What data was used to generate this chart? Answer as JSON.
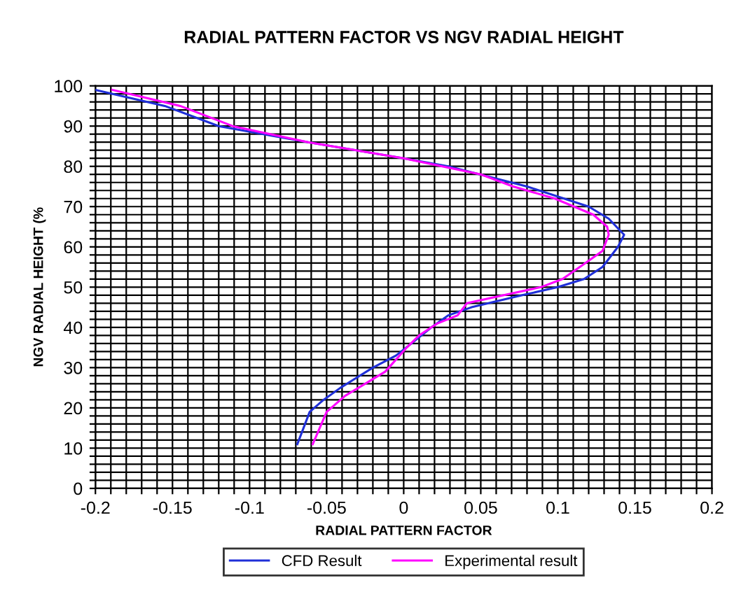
{
  "chart_data": {
    "type": "line",
    "title": "RADIAL PATTERN FACTOR VS NGV RADIAL HEIGHT",
    "xlabel": "RADIAL PATTERN FACTOR",
    "ylabel": "NGV RADIAL HEIGHT (%",
    "xlim": [
      -0.2,
      0.2
    ],
    "ylim": [
      0,
      100
    ],
    "xticks": [
      -0.2,
      {
        "value": -0.19,
        "label": null
      },
      {
        "value": -0.18,
        "label": null
      },
      {
        "value": -0.17,
        "label": null
      },
      {
        "value": -0.16,
        "label": null
      },
      -0.15,
      {
        "value": -0.14,
        "label": null
      },
      {
        "value": -0.13,
        "label": null
      },
      {
        "value": -0.12,
        "label": null
      },
      {
        "value": -0.11,
        "label": null
      },
      -0.1,
      {
        "value": -0.09,
        "label": null
      },
      {
        "value": -0.08,
        "label": null
      },
      {
        "value": -0.07,
        "label": null
      },
      {
        "value": -0.06,
        "label": null
      },
      -0.05,
      {
        "value": -0.04,
        "label": null
      },
      {
        "value": -0.03,
        "label": null
      },
      {
        "value": -0.02,
        "label": null
      },
      {
        "value": -0.01,
        "label": null
      },
      0,
      {
        "value": 0.01,
        "label": null
      },
      {
        "value": 0.02,
        "label": null
      },
      {
        "value": 0.03,
        "label": null
      },
      {
        "value": 0.04,
        "label": null
      },
      0.05,
      {
        "value": 0.06,
        "label": null
      },
      {
        "value": 0.07,
        "label": null
      },
      {
        "value": 0.08,
        "label": null
      },
      {
        "value": 0.09,
        "label": null
      },
      0.1,
      {
        "value": 0.11,
        "label": null
      },
      {
        "value": 0.12,
        "label": null
      },
      {
        "value": 0.13,
        "label": null
      },
      {
        "value": 0.14,
        "label": null
      },
      0.15,
      {
        "value": 0.16,
        "label": null
      },
      {
        "value": 0.17,
        "label": null
      },
      {
        "value": 0.18,
        "label": null
      },
      {
        "value": 0.19,
        "label": null
      },
      0.2
    ],
    "yticks": [
      0,
      {
        "value": 2,
        "label": null
      },
      {
        "value": 4,
        "label": null
      },
      {
        "value": 6,
        "label": null
      },
      {
        "value": 8,
        "label": null
      },
      10,
      {
        "value": 12,
        "label": null
      },
      {
        "value": 14,
        "label": null
      },
      {
        "value": 16,
        "label": null
      },
      {
        "value": 18,
        "label": null
      },
      20,
      {
        "value": 22,
        "label": null
      },
      {
        "value": 24,
        "label": null
      },
      {
        "value": 26,
        "label": null
      },
      {
        "value": 28,
        "label": null
      },
      30,
      {
        "value": 32,
        "label": null
      },
      {
        "value": 34,
        "label": null
      },
      {
        "value": 36,
        "label": null
      },
      {
        "value": 38,
        "label": null
      },
      40,
      {
        "value": 42,
        "label": null
      },
      {
        "value": 44,
        "label": null
      },
      {
        "value": 46,
        "label": null
      },
      {
        "value": 48,
        "label": null
      },
      50,
      {
        "value": 52,
        "label": null
      },
      {
        "value": 54,
        "label": null
      },
      {
        "value": 56,
        "label": null
      },
      {
        "value": 58,
        "label": null
      },
      60,
      {
        "value": 62,
        "label": null
      },
      {
        "value": 64,
        "label": null
      },
      {
        "value": 66,
        "label": null
      },
      {
        "value": 68,
        "label": null
      },
      70,
      {
        "value": 72,
        "label": null
      },
      {
        "value": 74,
        "label": null
      },
      {
        "value": 76,
        "label": null
      },
      {
        "value": 78,
        "label": null
      },
      80,
      {
        "value": 82,
        "label": null
      },
      {
        "value": 84,
        "label": null
      },
      {
        "value": 86,
        "label": null
      },
      {
        "value": 88,
        "label": null
      },
      90,
      {
        "value": 92,
        "label": null
      },
      {
        "value": 94,
        "label": null
      },
      {
        "value": 96,
        "label": null
      },
      {
        "value": 98,
        "label": null
      },
      100
    ],
    "grid": true,
    "legend": "bottom",
    "marker": "none",
    "line_style": "solid",
    "series": [
      {
        "name": "CFD Result",
        "color": "#1f2fd8",
        "x": [
          -0.2,
          -0.155,
          -0.12,
          -0.062,
          0,
          0.029,
          0.08,
          0.12,
          0.133,
          0.143,
          0.139,
          0.129,
          0.117,
          0.1,
          0.077,
          0.044,
          0.029,
          0.018,
          0.005,
          -0.005,
          -0.02,
          -0.041,
          -0.052,
          -0.061,
          -0.069
        ],
        "values": [
          99,
          95,
          90,
          86,
          82,
          80,
          75,
          70,
          67,
          63,
          60,
          55,
          52,
          50,
          48,
          45,
          43,
          40,
          36,
          33,
          30,
          25,
          22,
          19,
          11
        ]
      },
      {
        "name": "Experimental result",
        "color": "#ff00ff",
        "x": [
          -0.189,
          -0.145,
          -0.111,
          -0.062,
          0,
          0.05,
          0.071,
          0.098,
          0.123,
          0.132,
          0.133,
          0.129,
          0.118,
          0.103,
          0.089,
          0.065,
          0.041,
          0.035,
          0.022,
          0.01,
          0.002,
          -0.005,
          -0.012,
          -0.025,
          -0.038,
          -0.05,
          -0.059
        ],
        "values": [
          99,
          95,
          90,
          86,
          82,
          78,
          75,
          72,
          68,
          65,
          63,
          59,
          56,
          52,
          50,
          48,
          46,
          43,
          41,
          38,
          35,
          32,
          29,
          26,
          23,
          19,
          11
        ]
      }
    ]
  }
}
